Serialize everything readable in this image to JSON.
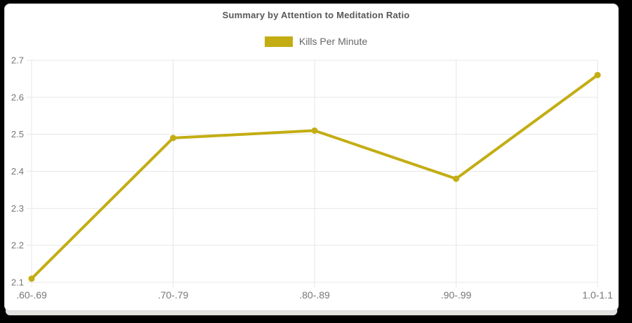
{
  "window": {
    "background": "#000000"
  },
  "card": {
    "background": "#ffffff",
    "border_color": "#d6d6d6",
    "shadow_color": "#e2e2e0"
  },
  "chart_data": {
    "type": "line",
    "title": "Summary by Attention to Meditation Ratio",
    "legend": [
      {
        "label": "Kills Per Minute",
        "color": "#c3ad13"
      }
    ],
    "legend_position": "top",
    "categories": [
      ".60-.69",
      ".70-.79",
      ".80-.89",
      ".90-.99",
      "1.0-1.1"
    ],
    "series": [
      {
        "name": "Kills Per Minute",
        "color": "#c3ad13",
        "values": [
          2.11,
          2.49,
          2.51,
          2.38,
          2.66
        ]
      }
    ],
    "xlabel": "",
    "ylabel": "",
    "ylim": [
      2.1,
      2.7
    ],
    "yticks": [
      "2.1",
      "2.2",
      "2.3",
      "2.4",
      "2.5",
      "2.6",
      "2.7"
    ],
    "grid": true,
    "colors": {
      "grid": "#e7e7e7",
      "axis_text": "#767676",
      "title_text": "#58585a",
      "legend_text": "#666666"
    }
  }
}
